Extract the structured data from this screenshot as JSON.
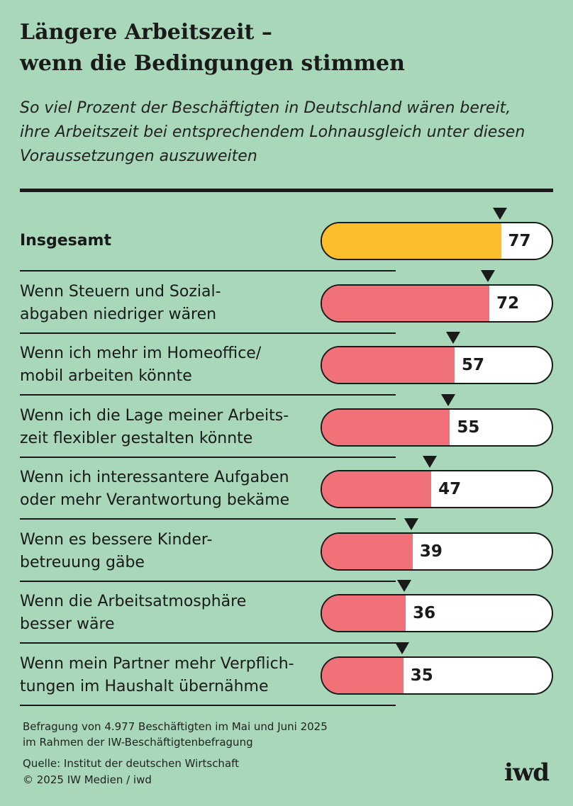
{
  "title": "Längere Arbeitszeit –\nwenn die Bedingungen stimmen",
  "subtitle": "So viel Prozent der Beschäftigten in Deutschland wären bereit,\nihre Arbeitszeit bei entsprechendem Lohnausgleich unter diesen\nVoraussetzungen auszuweiten",
  "colors": {
    "background": "#a8d8b9",
    "total_bar": "#fbbf2e",
    "item_bar": "#f07178",
    "bar_track": "#ffffff",
    "text": "#1a1a1a"
  },
  "chart_data": {
    "type": "bar",
    "orientation": "horizontal",
    "title": "Längere Arbeitszeit – wenn die Bedingungen stimmen",
    "xlim": [
      0,
      100
    ],
    "categories": [
      "Insgesamt",
      "Wenn Steuern und Sozial-\nabgaben niedriger wären",
      "Wenn ich mehr im Homeoffice/\nmobil arbeiten könnte",
      "Wenn ich die Lage meiner Arbeits-\nzeit flexibler gestalten könnte",
      "Wenn ich interessantere Aufgaben\noder mehr Verantwortung bekäme",
      "Wenn es bessere Kinder-\nbetreuung gäbe",
      "Wenn die Arbeitsatmosphäre\nbesser wäre",
      "Wenn mein Partner mehr Verpflich-\ntungen im Haushalt übernähme"
    ],
    "values": [
      77,
      72,
      57,
      55,
      47,
      39,
      36,
      35
    ],
    "highlight": [
      true,
      false,
      false,
      false,
      false,
      false,
      false,
      false
    ]
  },
  "footer": {
    "note": "Befragung von 4.977 Beschäftigten im Mai und Juni 2025\nim Rahmen der IW-Beschäftigtenbefragung",
    "source": "Quelle: Institut der deutschen Wirtschaft",
    "copyright": "© 2025 IW Medien / iwd"
  },
  "logo": "iwd"
}
